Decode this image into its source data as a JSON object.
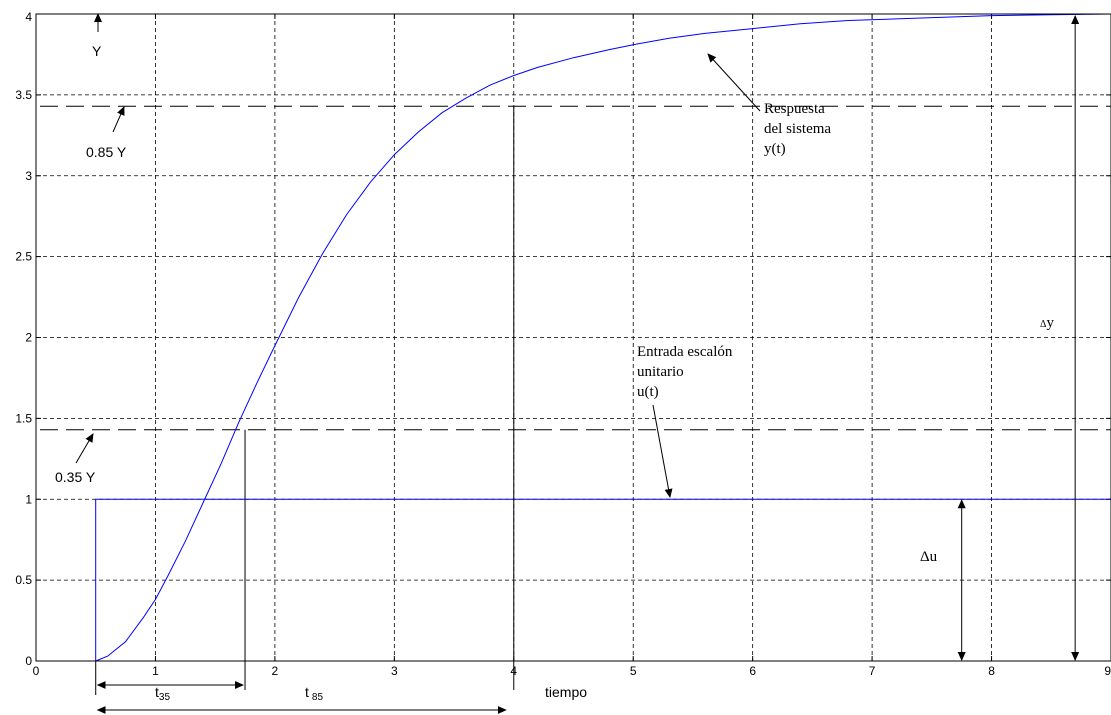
{
  "chart_data": {
    "type": "line",
    "title": "",
    "xlabel": "tiempo",
    "ylabel": "",
    "xlim": [
      0,
      9
    ],
    "ylim": [
      0,
      4
    ],
    "grid": true,
    "x_ticks": [
      "0",
      "1",
      "2",
      "3",
      "4",
      "5",
      "6",
      "7",
      "8",
      "9"
    ],
    "y_ticks": [
      "0",
      "0.5",
      "1",
      "1.5",
      "2",
      "2.5",
      "3",
      "3.5",
      "4"
    ],
    "series": [
      {
        "name": "y(t)",
        "color": "#0000ff",
        "x": [
          0.5,
          0.6,
          0.75,
          0.9,
          1.0,
          1.1,
          1.25,
          1.4,
          1.55,
          1.7,
          1.85,
          2.0,
          2.2,
          2.4,
          2.6,
          2.8,
          3.0,
          3.2,
          3.4,
          3.6,
          3.8,
          4.0,
          4.2,
          4.5,
          4.8,
          5.0,
          5.3,
          5.6,
          6.0,
          6.4,
          6.8,
          7.2,
          7.6,
          8.0,
          8.5,
          9.0
        ],
        "y": [
          0.0,
          0.03,
          0.12,
          0.27,
          0.38,
          0.52,
          0.74,
          0.98,
          1.22,
          1.48,
          1.72,
          1.95,
          2.25,
          2.52,
          2.76,
          2.96,
          3.13,
          3.27,
          3.39,
          3.48,
          3.56,
          3.62,
          3.67,
          3.73,
          3.78,
          3.81,
          3.85,
          3.88,
          3.91,
          3.94,
          3.96,
          3.97,
          3.98,
          3.99,
          3.995,
          4.0
        ]
      },
      {
        "name": "u(t)",
        "color": "#0000ff",
        "x": [
          0.5,
          0.5,
          9.0
        ],
        "y": [
          0.0,
          1.0,
          1.0
        ]
      }
    ],
    "reference_lines": [
      {
        "value": 3.43,
        "style": "dashed"
      },
      {
        "value": 1.43,
        "style": "dashed"
      }
    ],
    "markers": {
      "t35": 1.75,
      "t85": 4.0,
      "dy_x": 8.7,
      "du_x": 7.75
    }
  },
  "annotations": {
    "y_label": "Y",
    "y085_label": "0.85 Y",
    "y035_label": "0.35 Y",
    "respuesta_line1": "Respuesta",
    "respuesta_line2": "del sistema",
    "respuesta_line3": "y(t)",
    "entrada_line1": "Entrada escalón",
    "entrada_line2": "unitario",
    "entrada_line3": "u(t)",
    "dy_symbol": "Δ",
    "dy_letter": "y",
    "du_symbol": "Δ",
    "du_letter": "u",
    "t35_base": "t",
    "t35_sub": "35",
    "t85_base": "t",
    "t85_sub": "85"
  }
}
